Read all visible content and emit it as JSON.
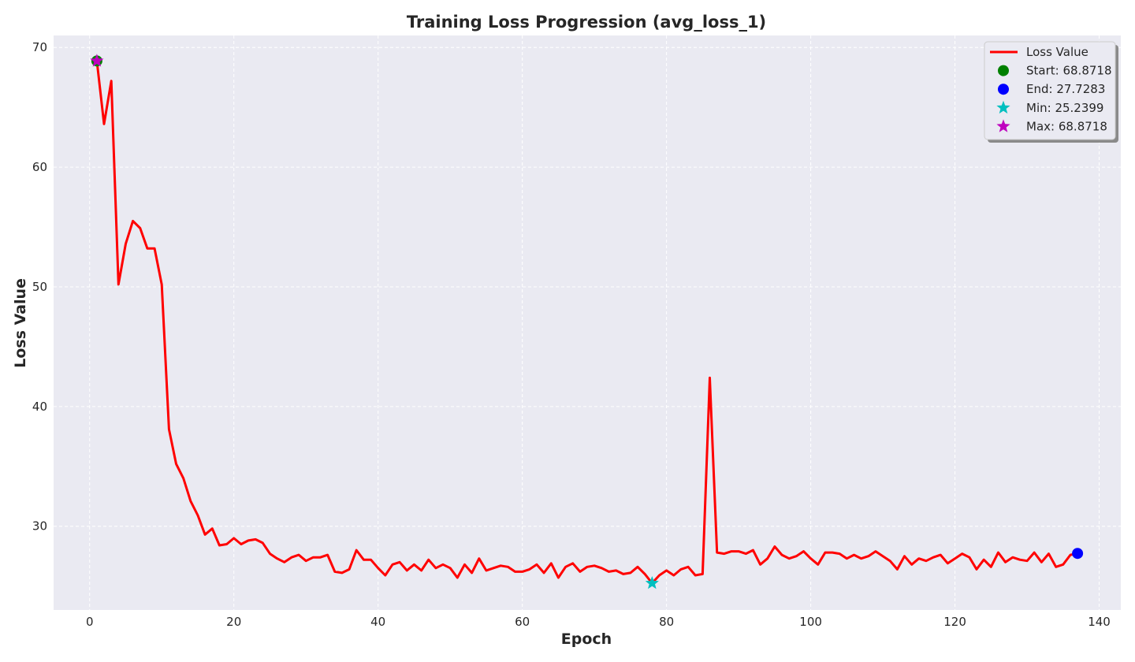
{
  "chart_data": {
    "type": "line",
    "title": "Training Loss Progression (avg_loss_1)",
    "xlabel": "Epoch",
    "ylabel": "Loss Value",
    "xlim": [
      -5,
      143
    ],
    "ylim": [
      23,
      71
    ],
    "xticks": [
      0,
      20,
      40,
      60,
      80,
      100,
      120,
      140
    ],
    "yticks": [
      30,
      40,
      50,
      60,
      70
    ],
    "grid": true,
    "legend_position": "top-right",
    "series": [
      {
        "name": "Loss Value",
        "color": "#ff0000",
        "x": [
          1,
          2,
          3,
          4,
          5,
          6,
          7,
          8,
          9,
          10,
          11,
          12,
          13,
          14,
          15,
          16,
          17,
          18,
          19,
          20,
          21,
          22,
          23,
          24,
          25,
          26,
          27,
          28,
          29,
          30,
          31,
          32,
          33,
          34,
          35,
          36,
          37,
          38,
          39,
          40,
          41,
          42,
          43,
          44,
          45,
          46,
          47,
          48,
          49,
          50,
          51,
          52,
          53,
          54,
          55,
          56,
          57,
          58,
          59,
          60,
          61,
          62,
          63,
          64,
          65,
          66,
          67,
          68,
          69,
          70,
          71,
          72,
          73,
          74,
          75,
          76,
          77,
          78,
          79,
          80,
          81,
          82,
          83,
          84,
          85,
          86,
          87,
          88,
          89,
          90,
          91,
          92,
          93,
          94,
          95,
          96,
          97,
          98,
          99,
          100,
          101,
          102,
          103,
          104,
          105,
          106,
          107,
          108,
          109,
          110,
          111,
          112,
          113,
          114,
          115,
          116,
          117,
          118,
          119,
          120,
          121,
          122,
          123,
          124,
          125,
          126,
          127,
          128,
          129,
          130,
          131,
          132,
          133,
          134,
          135,
          136,
          137
        ],
        "y": [
          68.87,
          63.6,
          67.2,
          50.2,
          53.6,
          55.5,
          54.9,
          53.2,
          53.2,
          50.2,
          38.1,
          35.2,
          34.0,
          32.1,
          30.9,
          29.3,
          29.8,
          28.4,
          28.5,
          29.0,
          28.5,
          28.8,
          28.9,
          28.6,
          27.7,
          27.3,
          27.0,
          27.4,
          27.6,
          27.1,
          27.4,
          27.4,
          27.6,
          26.2,
          26.1,
          26.4,
          28.0,
          27.2,
          27.2,
          26.5,
          25.9,
          26.8,
          27.0,
          26.3,
          26.8,
          26.3,
          27.2,
          26.5,
          26.8,
          26.5,
          25.7,
          26.8,
          26.1,
          27.3,
          26.3,
          26.5,
          26.7,
          26.6,
          26.2,
          26.2,
          26.4,
          26.8,
          26.1,
          26.9,
          25.7,
          26.6,
          26.9,
          26.2,
          26.6,
          26.7,
          26.5,
          26.2,
          26.3,
          26.0,
          26.1,
          26.6,
          26.0,
          25.24,
          25.9,
          26.3,
          25.9,
          26.4,
          26.6,
          25.9,
          26.0,
          42.4,
          27.8,
          27.7,
          27.9,
          27.9,
          27.7,
          28.0,
          26.8,
          27.3,
          28.3,
          27.6,
          27.3,
          27.5,
          27.9,
          27.3,
          26.8,
          27.8,
          27.8,
          27.7,
          27.3,
          27.6,
          27.3,
          27.5,
          27.9,
          27.5,
          27.1,
          26.4,
          27.5,
          26.8,
          27.3,
          27.1,
          27.4,
          27.6,
          26.9,
          27.3,
          27.7,
          27.4,
          26.4,
          27.2,
          26.6,
          27.8,
          27.0,
          27.4,
          27.2,
          27.1,
          27.8,
          27.0,
          27.7,
          26.6,
          26.8,
          27.6,
          27.73
        ]
      }
    ],
    "markers": {
      "start": {
        "x": 1,
        "y": 68.8718,
        "color": "#008000",
        "shape": "circle"
      },
      "end": {
        "x": 137,
        "y": 27.7283,
        "color": "#0000ff",
        "shape": "circle"
      },
      "min": {
        "x": 78,
        "y": 25.2399,
        "color": "#00bfbf",
        "shape": "star"
      },
      "max": {
        "x": 1,
        "y": 68.8718,
        "color": "#bf00bf",
        "shape": "star"
      }
    },
    "legend": [
      {
        "label": "Loss Value",
        "kind": "line",
        "color": "#ff0000"
      },
      {
        "label": "Start: 68.8718",
        "kind": "circle",
        "color": "#008000"
      },
      {
        "label": "End: 27.7283",
        "kind": "circle",
        "color": "#0000ff"
      },
      {
        "label": "Min: 25.2399",
        "kind": "star",
        "color": "#00bfbf"
      },
      {
        "label": "Max: 68.8718",
        "kind": "star",
        "color": "#bf00bf"
      }
    ],
    "background_color": "#eaeaf2"
  }
}
